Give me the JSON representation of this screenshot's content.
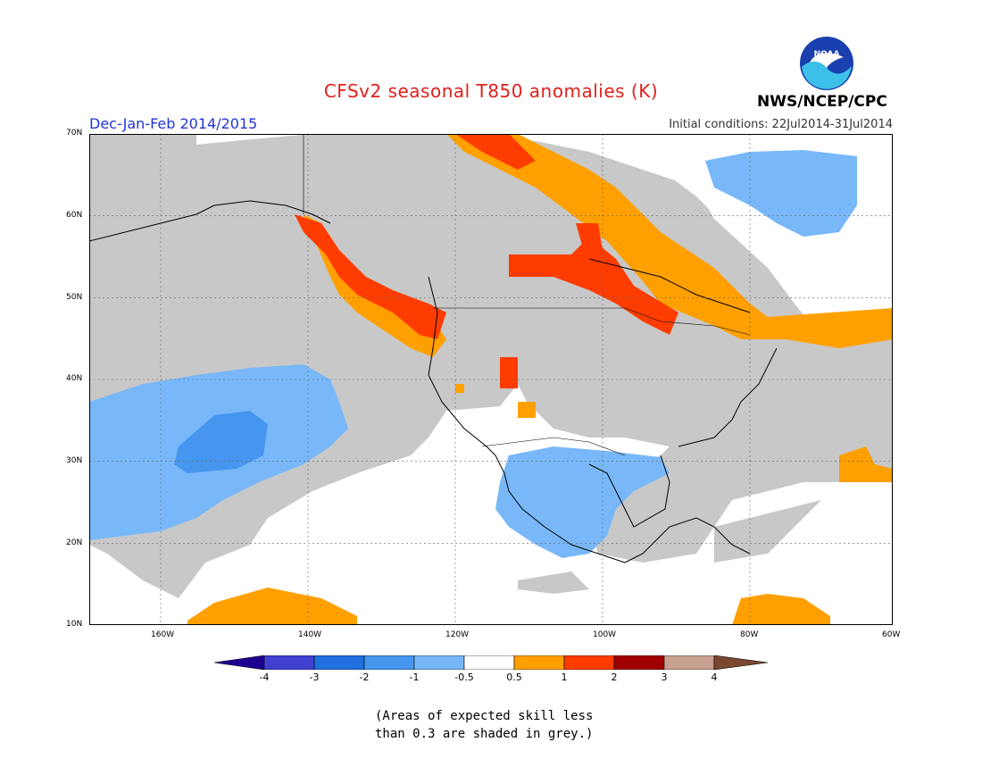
{
  "title": "CFSv2 seasonal T850 anomalies (K)",
  "season": "Dec-Jan-Feb 2014/2015",
  "initial_conditions": "Initial conditions: 22Jul2014-31Jul2014",
  "agency": "NWS/NCEP/CPC",
  "logo_text": "NOAA",
  "map": {
    "lat_labels": [
      "70N",
      "60N",
      "50N",
      "40N",
      "30N",
      "20N",
      "10N"
    ],
    "lon_labels": [
      "160W",
      "140W",
      "120W",
      "100W",
      "80W",
      "60W"
    ],
    "colors": {
      "grey": "#c8c8c8",
      "orange": "#ffa000",
      "red": "#ff3c00",
      "lightblue": "#78b8f8",
      "midblue": "#4696f0"
    }
  },
  "colorbar": {
    "labels": [
      "-4",
      "-3",
      "-2",
      "-1",
      "-0.5",
      "0.5",
      "1",
      "2",
      "3",
      "4"
    ],
    "colors": [
      "#1e0090",
      "#4040d0",
      "#2070e0",
      "#4696f0",
      "#78b8f8",
      "#ffffff",
      "#ffa000",
      "#ff3c00",
      "#a00000",
      "#c8a090",
      "#7a4830"
    ]
  },
  "note": "(Areas of expected skill less\nthan 0.3 are shaded in grey.)"
}
